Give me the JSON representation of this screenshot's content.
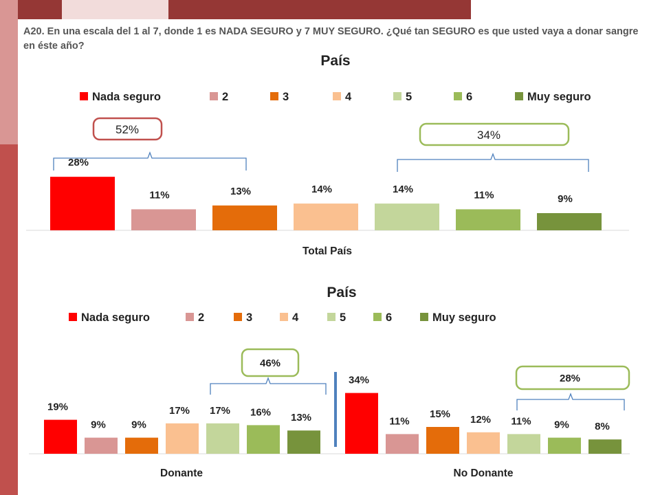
{
  "question": "A20. En una escala del 1 al 7, donde 1 es NADA SEGURO y 7 MUY SEGURO. ¿Qué tan SEGURO es que usted vaya a donar sangre en éste año?",
  "colors": {
    "nada_seguro": "#ff0000",
    "2": "#d99694",
    "3": "#e46c0a",
    "4": "#fac090",
    "5": "#c3d69b",
    "6": "#9bbb59",
    "muy_seguro": "#77933c",
    "box_left": "#c0504d",
    "box_right": "#9bbb59",
    "bracket": "#4f81bd",
    "divider": "#4f81bd",
    "deco_dark": "#953735",
    "deco_light": "#f2dcdb",
    "deco_mid": "#d99694"
  },
  "chart_data": [
    {
      "type": "bar",
      "title": "País",
      "legend": [
        "Nada seguro",
        "2",
        "3",
        "4",
        "5",
        "6",
        "Muy seguro"
      ],
      "legend_position": "top",
      "grid": false,
      "categories": [
        "Total País"
      ],
      "series": [
        {
          "name": "Nada seguro",
          "values": [
            28
          ],
          "label": "28%"
        },
        {
          "name": "2",
          "values": [
            11
          ],
          "label": "11%"
        },
        {
          "name": "3",
          "values": [
            13
          ],
          "label": "13%"
        },
        {
          "name": "4",
          "values": [
            14
          ],
          "label": "14%"
        },
        {
          "name": "5",
          "values": [
            14
          ],
          "label": "14%"
        },
        {
          "name": "6",
          "values": [
            11
          ],
          "label": "11%"
        },
        {
          "name": "Muy seguro",
          "values": [
            9
          ],
          "label": "9%"
        }
      ],
      "annotations": [
        {
          "text": "52%",
          "covers": [
            "Nada seguro",
            "2",
            "3"
          ]
        },
        {
          "text": "34%",
          "covers": [
            "5",
            "6",
            "Muy seguro"
          ]
        }
      ]
    },
    {
      "type": "bar",
      "title": "País",
      "legend": [
        "Nada seguro",
        "2",
        "3",
        "4",
        "5",
        "6",
        "Muy seguro"
      ],
      "legend_position": "top",
      "grid": false,
      "categories": [
        "Donante",
        "No Donante"
      ],
      "series": [
        {
          "name": "Nada seguro",
          "values": [
            19,
            34
          ],
          "labels": [
            "19%",
            "34%"
          ]
        },
        {
          "name": "2",
          "values": [
            9,
            11
          ],
          "labels": [
            "9%",
            "11%"
          ]
        },
        {
          "name": "3",
          "values": [
            9,
            15
          ],
          "labels": [
            "9%",
            "15%"
          ]
        },
        {
          "name": "4",
          "values": [
            17,
            12
          ],
          "labels": [
            "17%",
            "12%"
          ]
        },
        {
          "name": "5",
          "values": [
            17,
            11
          ],
          "labels": [
            "17%",
            "11%"
          ]
        },
        {
          "name": "6",
          "values": [
            16,
            9
          ],
          "labels": [
            "16%",
            "9%"
          ]
        },
        {
          "name": "Muy seguro",
          "values": [
            13,
            8
          ],
          "labels": [
            "13%",
            "8%"
          ]
        }
      ],
      "annotations": [
        {
          "text": "46%",
          "category": "Donante",
          "covers": [
            "5",
            "6",
            "Muy seguro"
          ]
        },
        {
          "text": "28%",
          "category": "No Donante",
          "covers": [
            "5",
            "6",
            "Muy seguro"
          ]
        }
      ]
    }
  ]
}
